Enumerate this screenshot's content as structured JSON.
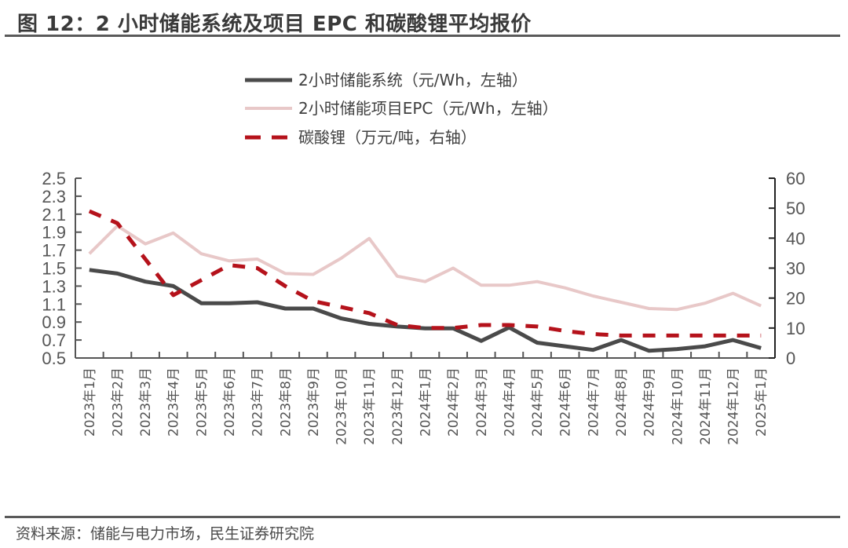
{
  "header": {
    "title": "图 12：2 小时储能系统及项目 EPC 和碳酸锂平均报价"
  },
  "footer": {
    "source": "资料来源：储能与电力市场，民生证券研究院"
  },
  "colors": {
    "system": "#4a4a4a",
    "epc": "#e8c8c8",
    "lithium": "#b5121b",
    "axis": "#555555"
  },
  "chart_data": {
    "type": "line",
    "title": "2 小时储能系统及项目 EPC 和碳酸锂平均报价",
    "categories": [
      "2023年1月",
      "2023年2月",
      "2023年3月",
      "2023年4月",
      "2023年5月",
      "2023年6月",
      "2023年7月",
      "2023年8月",
      "2023年9月",
      "2023年10月",
      "2023年11月",
      "2023年12月",
      "2024年1月",
      "2024年2月",
      "2024年3月",
      "2024年4月",
      "2024年5月",
      "2024年6月",
      "2024年7月",
      "2024年8月",
      "2024年9月",
      "2024年10月",
      "2024年11月",
      "2024年12月",
      "2025年1月"
    ],
    "left_axis": {
      "ylim": [
        0.5,
        2.5
      ],
      "ticks": [
        "0.5",
        "0.7",
        "0.9",
        "1.1",
        "1.3",
        "1.5",
        "1.7",
        "1.9",
        "2.1",
        "2.3",
        "2.5"
      ]
    },
    "right_axis": {
      "ylim": [
        0,
        60
      ],
      "ticks": [
        "0",
        "10",
        "20",
        "30",
        "40",
        "50",
        "60"
      ]
    },
    "legend_position": "top-center",
    "series": [
      {
        "name": "2小时储能系统（元/Wh，左轴）",
        "axis": "left",
        "style": "solid",
        "values": [
          1.48,
          1.44,
          1.35,
          1.3,
          1.11,
          1.11,
          1.12,
          1.05,
          1.05,
          0.94,
          0.88,
          0.85,
          0.83,
          0.83,
          0.69,
          0.84,
          0.67,
          0.63,
          0.59,
          0.7,
          0.58,
          0.6,
          0.63,
          0.7,
          0.61
        ]
      },
      {
        "name": "2小时储能项目EPC（元/Wh，左轴）",
        "axis": "left",
        "style": "solid",
        "values": [
          1.66,
          1.97,
          1.77,
          1.89,
          1.66,
          1.58,
          1.6,
          1.44,
          1.43,
          1.61,
          1.83,
          1.41,
          1.35,
          1.5,
          1.31,
          1.31,
          1.35,
          1.28,
          1.19,
          1.12,
          1.05,
          1.04,
          1.11,
          1.22,
          1.08
        ]
      },
      {
        "name": "碳酸锂（万元/吨，右轴）",
        "axis": "right",
        "style": "dashed",
        "values": [
          49,
          45,
          33,
          21,
          26,
          31,
          30,
          24,
          19,
          17,
          15,
          11,
          10,
          10,
          11,
          11,
          10.5,
          9,
          8,
          7.5,
          7.5,
          7.5,
          7.5,
          7.5,
          7.5
        ]
      }
    ]
  }
}
